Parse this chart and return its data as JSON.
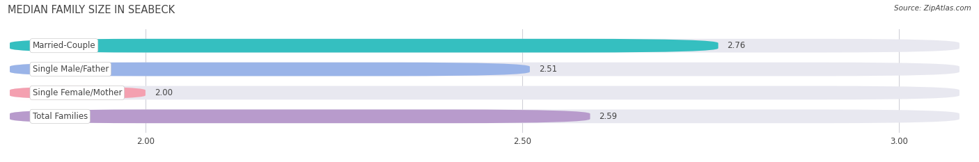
{
  "title": "MEDIAN FAMILY SIZE IN SEABECK",
  "source": "Source: ZipAtlas.com",
  "categories": [
    "Married-Couple",
    "Single Male/Father",
    "Single Female/Mother",
    "Total Families"
  ],
  "values": [
    2.76,
    2.51,
    2.0,
    2.59
  ],
  "bar_colors": [
    "#35bfc0",
    "#9ab4e8",
    "#f4a0b0",
    "#b89bcc"
  ],
  "xlim": [
    1.82,
    3.08
  ],
  "xticks": [
    2.0,
    2.5,
    3.0
  ],
  "xtick_labels": [
    "2.00",
    "2.50",
    "3.00"
  ],
  "bar_height": 0.58,
  "label_fontsize": 8.5,
  "value_fontsize": 8.5,
  "title_fontsize": 10.5,
  "background_color": "#ffffff",
  "bar_bg_color": "#e8e8f0",
  "text_color": "#444444",
  "grid_color": "#d0d0d8"
}
